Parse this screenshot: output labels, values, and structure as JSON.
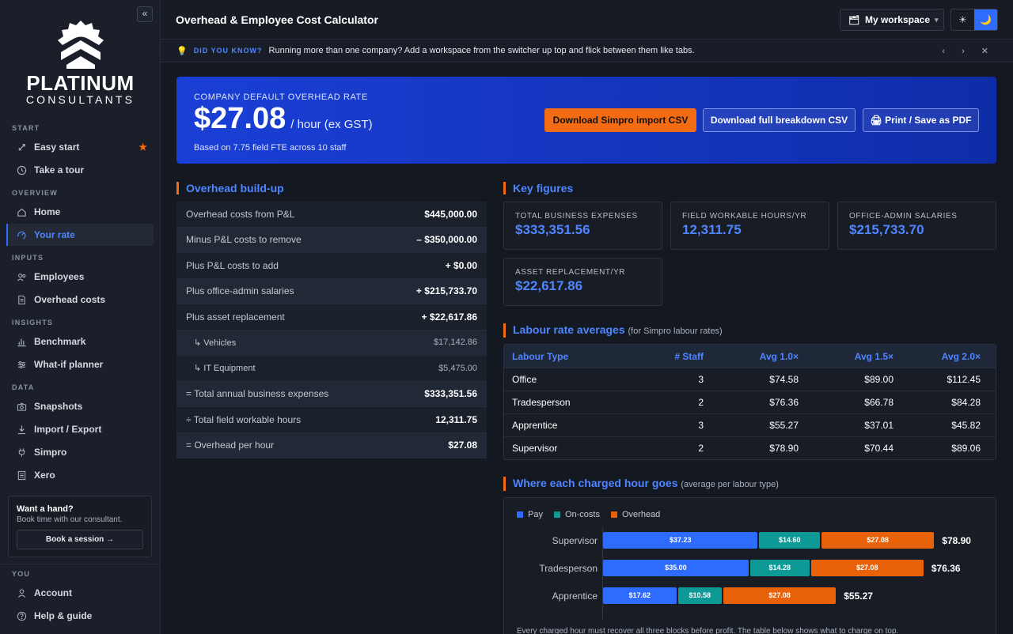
{
  "sidebar": {
    "brand_line1": "PLATINUM",
    "brand_line2": "CONSULTANTS",
    "collapse": "«",
    "sections": {
      "start": "START",
      "overview": "OVERVIEW",
      "inputs": "INPUTS",
      "insights": "INSIGHTS",
      "data": "DATA",
      "you": "YOU"
    },
    "items": {
      "easy_start": "Easy start",
      "take_tour": "Take a tour",
      "home": "Home",
      "your_rate": "Your rate",
      "employees": "Employees",
      "overhead_costs": "Overhead costs",
      "benchmark": "Benchmark",
      "whatif": "What-if planner",
      "snapshots": "Snapshots",
      "import_export": "Import / Export",
      "simpro": "Simpro",
      "xero": "Xero",
      "account": "Account",
      "help_guide": "Help & guide"
    },
    "star": "★",
    "help_title": "Want a hand?",
    "help_sub": "Book time with our consultant.",
    "help_btn": "Book a session →",
    "accent_color": "#2e6bff"
  },
  "header": {
    "title": "Overhead & Employee Cost Calculator",
    "workspace": "My workspace",
    "ws_icon": "🗂",
    "ws_chevron": "▾",
    "theme_light": "☀",
    "theme_dark": "🌙"
  },
  "tip": {
    "icon": "💡",
    "label": "DID YOU KNOW?",
    "text": "Running more than one company? Add a workspace from the switcher up top and flick between them like tabs.",
    "nav": "‹ › ✕"
  },
  "hero": {
    "label": "COMPANY DEFAULT OVERHEAD RATE",
    "rate": "$27.08",
    "unit": "/ hour (ex GST)",
    "sub": "Based on 7.75 field FTE across 10 staff",
    "btn_simpro": "Download Simpro import CSV",
    "btn_breakdown": "Download full breakdown CSV",
    "btn_print": "🖨 Print / Save as PDF"
  },
  "buildup": {
    "title": "Overhead build-up",
    "rows": [
      {
        "k": "Overhead costs from P&L",
        "v": "$445,000.00"
      },
      {
        "k": "Minus P&L costs to remove",
        "v": "– $350,000.00"
      },
      {
        "k": "Plus P&L costs to add",
        "v": "+ $0.00"
      },
      {
        "k": "Plus office-admin salaries",
        "v": "+ $215,733.70"
      },
      {
        "k": "Plus asset replacement",
        "v": "+ $22,617.86"
      },
      {
        "k": "↳ Vehicles",
        "v": "$17,142.86"
      },
      {
        "k": "↳ IT Equipment",
        "v": "$5,475.00"
      },
      {
        "k": "= Total annual business expenses",
        "v": "$333,351.56"
      },
      {
        "k": "÷ Total field workable hours",
        "v": "12,311.75"
      },
      {
        "k": "= Overhead per hour",
        "v": "$27.08"
      }
    ]
  },
  "key_figures": {
    "title": "Key figures",
    "cards": [
      {
        "label": "TOTAL BUSINESS EXPENSES",
        "value": "$333,351.56"
      },
      {
        "label": "FIELD WORKABLE HOURS/YR",
        "value": "12,311.75"
      },
      {
        "label": "OFFICE-ADMIN SALARIES",
        "value": "$215,733.70"
      },
      {
        "label": "ASSET REPLACEMENT/YR",
        "value": "$22,617.86"
      }
    ]
  },
  "labour": {
    "title": "Labour rate averages",
    "subtitle": "(for Simpro labour rates)",
    "headers": [
      "Labour Type",
      "# Staff",
      "Avg 1.0×",
      "Avg 1.5×",
      "Avg 2.0×"
    ],
    "rows": [
      [
        "Office",
        "3",
        "$74.58",
        "$89.00",
        "$112.45"
      ],
      [
        "Tradesperson",
        "2",
        "$76.36",
        "$66.78",
        "$84.28"
      ],
      [
        "Apprentice",
        "3",
        "$55.27",
        "$37.01",
        "$45.82"
      ],
      [
        "Supervisor",
        "2",
        "$78.90",
        "$70.44",
        "$89.06"
      ]
    ]
  },
  "chart_data": {
    "type": "bar",
    "title": "Where each charged hour goes",
    "subtitle": "(average per labour type)",
    "stacked": true,
    "orientation": "horizontal",
    "categories": [
      "Supervisor",
      "Tradesperson",
      "Apprentice"
    ],
    "series": [
      {
        "name": "Pay",
        "values": [
          37.23,
          35.0,
          17.62
        ],
        "labels": [
          "$37.23",
          "$35.00",
          "$17.62"
        ],
        "color": "#2e6bff"
      },
      {
        "name": "On-costs",
        "values": [
          14.6,
          14.28,
          10.58
        ],
        "labels": [
          "$14.60",
          "$14.28",
          "$10.58"
        ],
        "color": "#0d9a96"
      },
      {
        "name": "Overhead",
        "values": [
          27.08,
          27.08,
          27.08
        ],
        "labels": [
          "$27.08",
          "$27.08",
          "$27.08"
        ],
        "color": "#e8620a"
      }
    ],
    "totals": [
      "$78.90",
      "$76.36",
      "$55.27"
    ],
    "legend": "top-left",
    "note": "Every charged hour must recover all three blocks before profit. The table below shows what to charge on top."
  }
}
